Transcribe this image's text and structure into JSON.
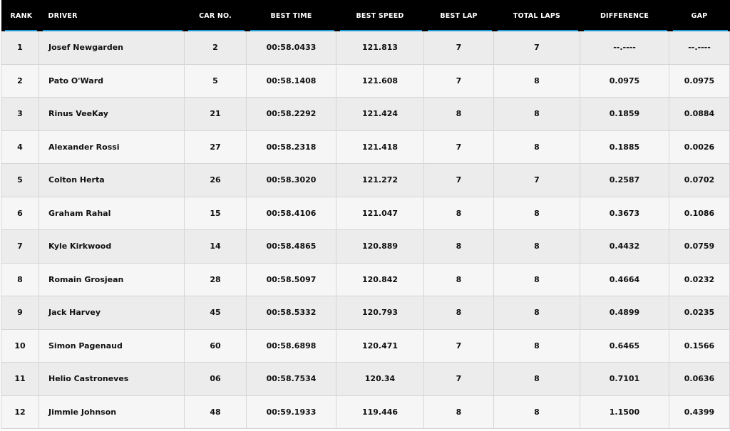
{
  "headers": [
    "RANK",
    "DRIVER",
    "CAR NO.",
    "BEST TIME",
    "BEST SPEED",
    "BEST LAP",
    "TOTAL LAPS",
    "DIFFERENCE",
    "GAP"
  ],
  "rows": [
    [
      "1",
      "Josef Newgarden",
      "2",
      "00:58.0433",
      "121.813",
      "7",
      "7",
      "--.----",
      "--.----"
    ],
    [
      "2",
      "Pato O'Ward",
      "5",
      "00:58.1408",
      "121.608",
      "7",
      "8",
      "0.0975",
      "0.0975"
    ],
    [
      "3",
      "Rinus VeeKay",
      "21",
      "00:58.2292",
      "121.424",
      "8",
      "8",
      "0.1859",
      "0.0884"
    ],
    [
      "4",
      "Alexander Rossi",
      "27",
      "00:58.2318",
      "121.418",
      "7",
      "8",
      "0.1885",
      "0.0026"
    ],
    [
      "5",
      "Colton Herta",
      "26",
      "00:58.3020",
      "121.272",
      "7",
      "7",
      "0.2587",
      "0.0702"
    ],
    [
      "6",
      "Graham Rahal",
      "15",
      "00:58.4106",
      "121.047",
      "8",
      "8",
      "0.3673",
      "0.1086"
    ],
    [
      "7",
      "Kyle Kirkwood",
      "14",
      "00:58.4865",
      "120.889",
      "8",
      "8",
      "0.4432",
      "0.0759"
    ],
    [
      "8",
      "Romain Grosjean",
      "28",
      "00:58.5097",
      "120.842",
      "8",
      "8",
      "0.4664",
      "0.0232"
    ],
    [
      "9",
      "Jack Harvey",
      "45",
      "00:58.5332",
      "120.793",
      "8",
      "8",
      "0.4899",
      "0.0235"
    ],
    [
      "10",
      "Simon Pagenaud",
      "60",
      "00:58.6898",
      "120.471",
      "7",
      "8",
      "0.6465",
      "0.1566"
    ],
    [
      "11",
      "Helio Castroneves",
      "06",
      "00:58.7534",
      "120.34",
      "7",
      "8",
      "0.7101",
      "0.0636"
    ],
    [
      "12",
      "Jimmie Johnson",
      "48",
      "00:59.1933",
      "119.446",
      "8",
      "8",
      "1.1500",
      "0.4399"
    ]
  ],
  "colors": {
    "header_bg": "#000000",
    "accent": "#1d9ad6",
    "row_odd": "#ececec",
    "row_even": "#f6f6f6"
  }
}
